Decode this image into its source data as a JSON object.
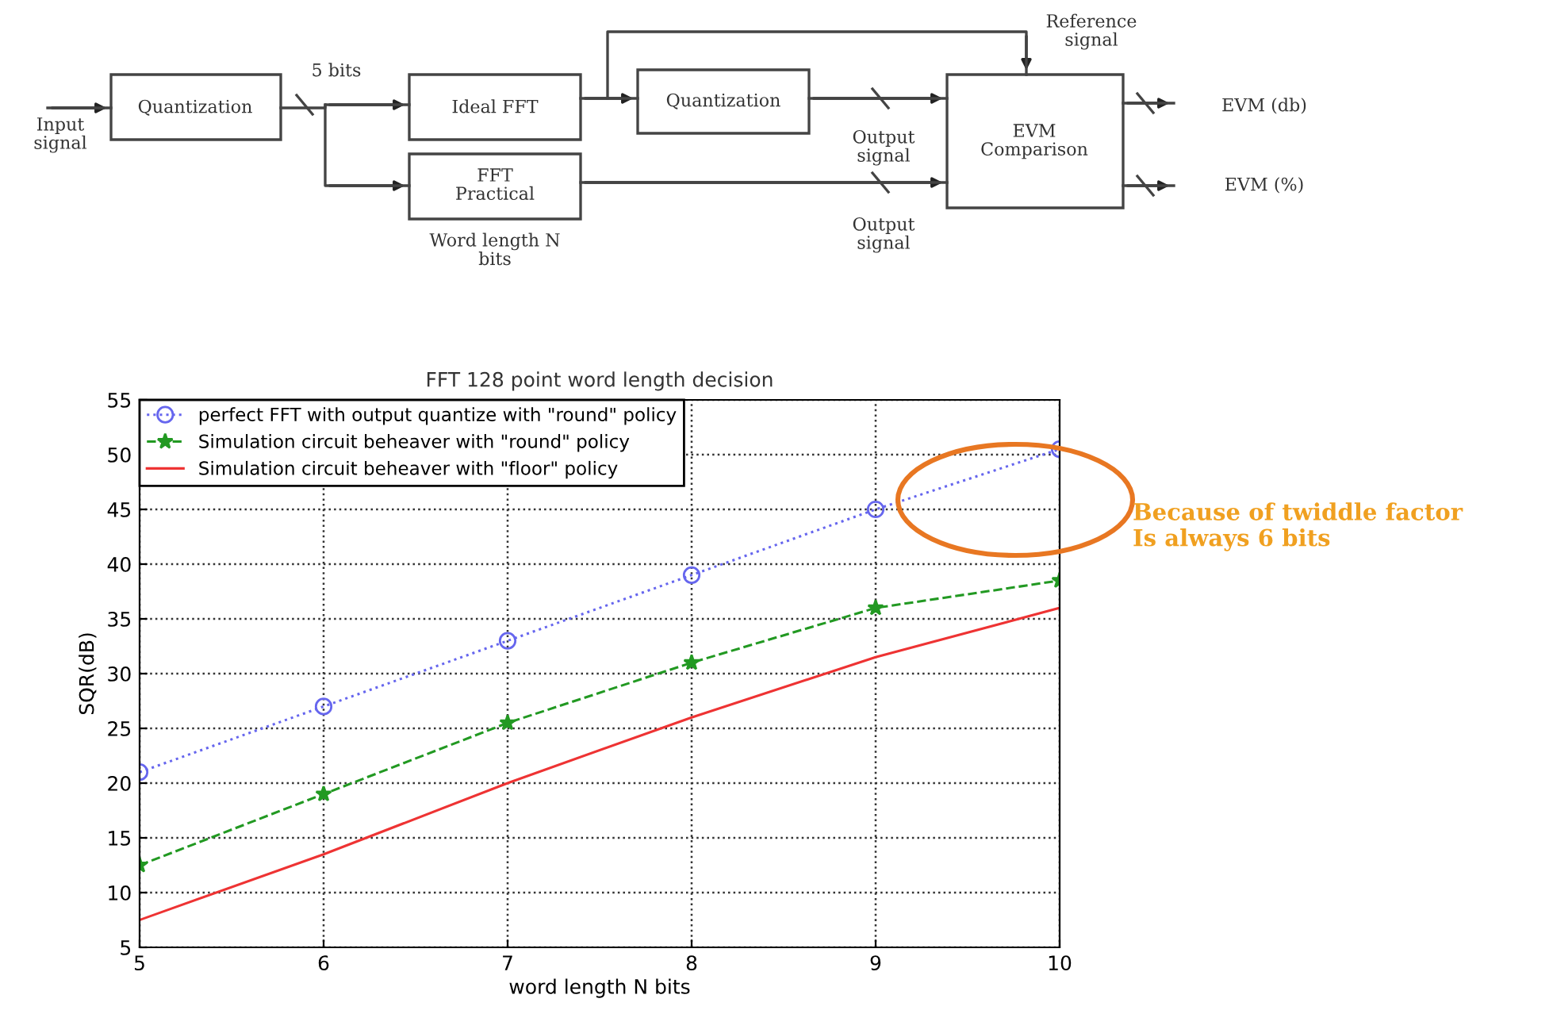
{
  "chart_data": {
    "type": "line",
    "title": "FFT 128 point word length decision",
    "xlabel": "word length N bits",
    "ylabel": "SQR(dB)",
    "x": [
      5,
      6,
      7,
      8,
      9,
      10
    ],
    "series": [
      {
        "name": "perfect FFT with output quantize with \"round\" policy",
        "color": "#6666ee",
        "values": [
          21,
          27,
          33,
          39,
          45,
          50.5
        ],
        "marker": "circle",
        "line_style": "dotted"
      },
      {
        "name": "Simulation circuit beheaver with \"round\" policy",
        "color": "#229922",
        "values": [
          12.5,
          19,
          25.5,
          31,
          36,
          38.5
        ],
        "marker": "star",
        "line_style": "dashed"
      },
      {
        "name": "Simulation circuit beheaver with \"floor\" policy",
        "color": "#ee3333",
        "values": [
          7.5,
          13.5,
          20,
          26,
          31.5,
          36
        ],
        "marker": "none",
        "line_style": "solid"
      }
    ],
    "xlim": [
      5,
      10
    ],
    "xticks": [
      5,
      6,
      7,
      8,
      9,
      10
    ],
    "ylim": [
      5,
      55
    ],
    "yticks": [
      5,
      10,
      15,
      20,
      25,
      30,
      35,
      40,
      45,
      50,
      55
    ],
    "grid": true,
    "legend": "top left",
    "annotations": [
      "Input\nsignal",
      "Quantization",
      "5 bits",
      "Ideal FFT",
      "FFT\nPractical",
      "Word length N\nbits",
      "Quantization",
      "Reference\nsignal",
      "Output\nsignal",
      "Output\nsignal",
      "EVM\nComparison",
      "EVM (db)",
      "EVM (%)",
      "Because of twiddle factor\nIs always 6 bits"
    ]
  }
}
